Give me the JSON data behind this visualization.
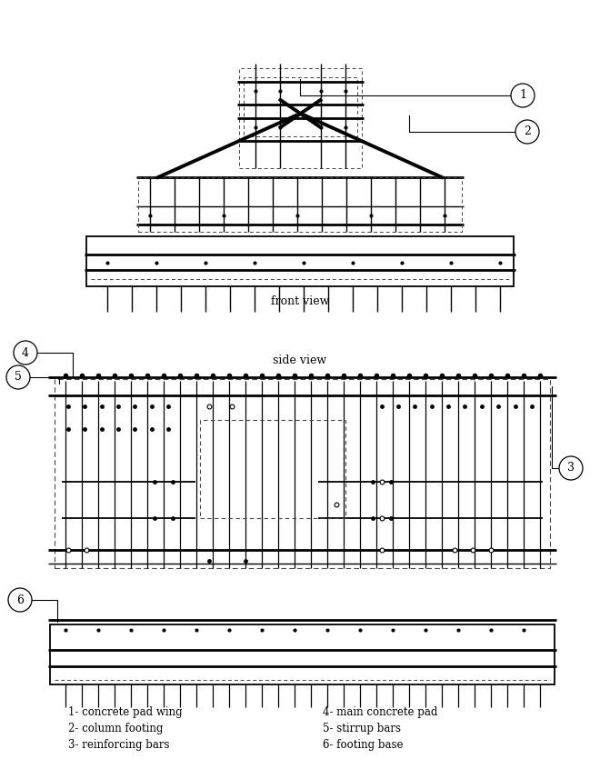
{
  "bg_color": "#ffffff",
  "front_view_label": "front view",
  "side_view_label": "side view",
  "legend": [
    "1- concrete pad wing",
    "2- column footing",
    "3- reinforcing bars",
    "4- main concrete pad",
    "5- stirrup bars",
    "6- footing base"
  ]
}
